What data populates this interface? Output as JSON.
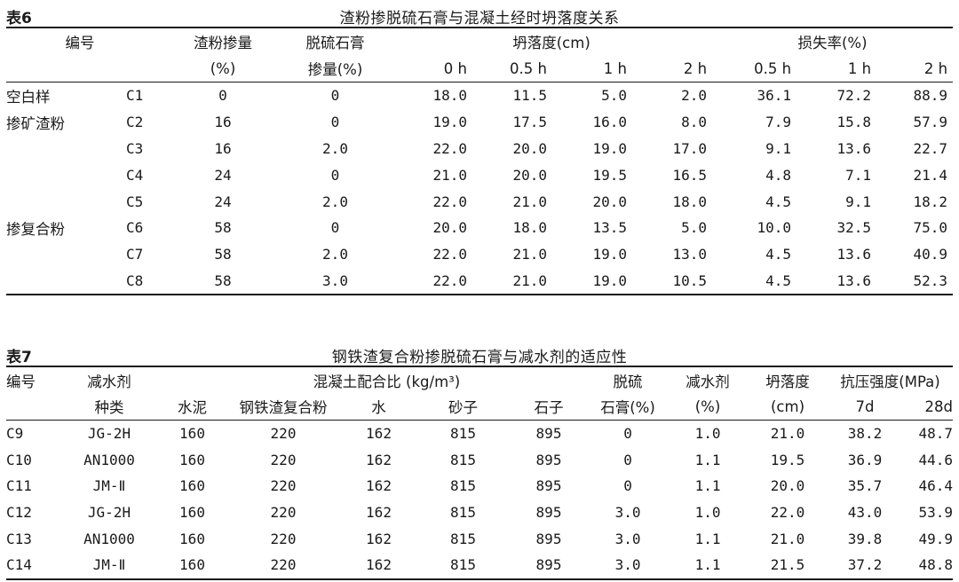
{
  "table6": {
    "label": "表6",
    "title": "渣粉掺脱硫石膏与混凝土经时坍落度关系",
    "header": {
      "id": "编号",
      "slag_dose": "渣粉掺量",
      "slag_unit": "(%)",
      "gypsum": "脱硫石膏",
      "gypsum_dose": "掺量(%)",
      "slump": "坍落度(cm)",
      "loss": "损失率(%)",
      "slump_times": [
        "0 h",
        "0.5 h",
        "1 h",
        "2 h"
      ],
      "loss_times": [
        "0.5 h",
        "1 h",
        "2 h"
      ]
    },
    "rows": [
      {
        "group": "空白样",
        "id": "C1",
        "slag": "0",
        "gypsum": "0",
        "s0": "18.0",
        "s05": "11.5",
        "s1": "5.0",
        "s2": "2.0",
        "l05": "36.1",
        "l1": "72.2",
        "l2": "88.9"
      },
      {
        "group": "掺矿渣粉",
        "id": "C2",
        "slag": "16",
        "gypsum": "0",
        "s0": "19.0",
        "s05": "17.5",
        "s1": "16.0",
        "s2": "8.0",
        "l05": "7.9",
        "l1": "15.8",
        "l2": "57.9"
      },
      {
        "group": "",
        "id": "C3",
        "slag": "16",
        "gypsum": "2.0",
        "s0": "22.0",
        "s05": "20.0",
        "s1": "19.0",
        "s2": "17.0",
        "l05": "9.1",
        "l1": "13.6",
        "l2": "22.7"
      },
      {
        "group": "",
        "id": "C4",
        "slag": "24",
        "gypsum": "0",
        "s0": "21.0",
        "s05": "20.0",
        "s1": "19.5",
        "s2": "16.5",
        "l05": "4.8",
        "l1": "7.1",
        "l2": "21.4"
      },
      {
        "group": "",
        "id": "C5",
        "slag": "24",
        "gypsum": "2.0",
        "s0": "22.0",
        "s05": "21.0",
        "s1": "20.0",
        "s2": "18.0",
        "l05": "4.5",
        "l1": "9.1",
        "l2": "18.2"
      },
      {
        "group": "掺复合粉",
        "id": "C6",
        "slag": "58",
        "gypsum": "0",
        "s0": "20.0",
        "s05": "18.0",
        "s1": "13.5",
        "s2": "5.0",
        "l05": "10.0",
        "l1": "32.5",
        "l2": "75.0"
      },
      {
        "group": "",
        "id": "C7",
        "slag": "58",
        "gypsum": "2.0",
        "s0": "22.0",
        "s05": "21.0",
        "s1": "19.0",
        "s2": "13.0",
        "l05": "4.5",
        "l1": "13.6",
        "l2": "40.9"
      },
      {
        "group": "",
        "id": "C8",
        "slag": "58",
        "gypsum": "3.0",
        "s0": "22.0",
        "s05": "21.0",
        "s1": "19.0",
        "s2": "10.5",
        "l05": "4.5",
        "l1": "13.6",
        "l2": "52.3"
      }
    ]
  },
  "table7": {
    "label": "表7",
    "title": "钢铁渣复合粉掺脱硫石膏与减水剂的适应性",
    "header": {
      "id": "编号",
      "reducer": "减水剂",
      "reducer_type": "种类",
      "mix": "混凝土配合比 (kg/m³)",
      "cement": "水泥",
      "composite": "钢铁渣复合粉",
      "water": "水",
      "sand": "砂子",
      "stone": "石子",
      "gypsum1": "脱硫",
      "gypsum2": "石膏(%)",
      "reducer_dose1": "减水剂",
      "reducer_dose2": "(%)",
      "slump1": "坍落度",
      "slump2": "(cm)",
      "strength": "抗压强度(MPa)",
      "d7": "7d",
      "d28": "28d"
    },
    "rows": [
      {
        "id": "C9",
        "type": "JG-2H",
        "cement": "160",
        "composite": "220",
        "water": "162",
        "sand": "815",
        "stone": "895",
        "gypsum": "0",
        "dose": "1.0",
        "slump": "21.0",
        "d7": "38.2",
        "d28": "48.7"
      },
      {
        "id": "C10",
        "type": "AN1000",
        "cement": "160",
        "composite": "220",
        "water": "162",
        "sand": "815",
        "stone": "895",
        "gypsum": "0",
        "dose": "1.1",
        "slump": "19.5",
        "d7": "36.9",
        "d28": "44.6"
      },
      {
        "id": "C11",
        "type": "JM-Ⅱ",
        "cement": "160",
        "composite": "220",
        "water": "162",
        "sand": "815",
        "stone": "895",
        "gypsum": "0",
        "dose": "1.1",
        "slump": "20.0",
        "d7": "35.7",
        "d28": "46.4"
      },
      {
        "id": "C12",
        "type": "JG-2H",
        "cement": "160",
        "composite": "220",
        "water": "162",
        "sand": "815",
        "stone": "895",
        "gypsum": "3.0",
        "dose": "1.0",
        "slump": "22.0",
        "d7": "43.0",
        "d28": "53.9"
      },
      {
        "id": "C13",
        "type": "AN1000",
        "cement": "160",
        "composite": "220",
        "water": "162",
        "sand": "815",
        "stone": "895",
        "gypsum": "3.0",
        "dose": "1.1",
        "slump": "21.0",
        "d7": "39.8",
        "d28": "49.9"
      },
      {
        "id": "C14",
        "type": "JM-Ⅱ",
        "cement": "160",
        "composite": "220",
        "water": "162",
        "sand": "815",
        "stone": "895",
        "gypsum": "3.0",
        "dose": "1.1",
        "slump": "21.5",
        "d7": "37.2",
        "d28": "48.8"
      }
    ]
  }
}
